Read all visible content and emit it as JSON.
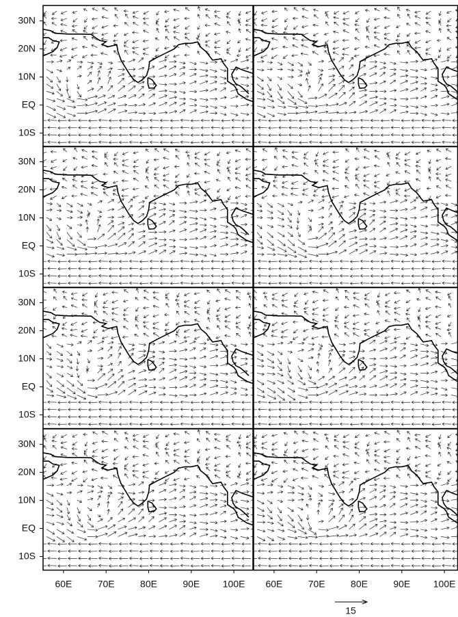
{
  "figure": {
    "y_tick_labels": [
      "30N",
      "20N",
      "10N",
      "EQ",
      "10S"
    ],
    "x_tick_labels": [
      "60E",
      "70E",
      "80E",
      "90E",
      "100E"
    ],
    "scale_label": "15"
  }
}
